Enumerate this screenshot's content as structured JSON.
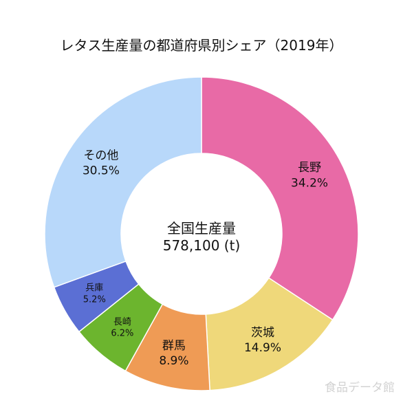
{
  "chart_data": {
    "type": "pie",
    "title": "レタス生産量の都道府県別シェア（2019年）",
    "center_label": "全国生産量",
    "center_value": "578,100 (t)",
    "slices": [
      {
        "label": "長野",
        "value": 34.2,
        "value_label": "34.2%",
        "color": "#e86aa6"
      },
      {
        "label": "茨城",
        "value": 14.9,
        "value_label": "14.9%",
        "color": "#efd87a"
      },
      {
        "label": "群馬",
        "value": 8.9,
        "value_label": "8.9%",
        "color": "#ef9b55"
      },
      {
        "label": "長崎",
        "value": 6.2,
        "value_label": "6.2%",
        "color": "#6cb52e"
      },
      {
        "label": "兵庫",
        "value": 5.2,
        "value_label": "5.2%",
        "color": "#5b6fd4"
      },
      {
        "label": "その他",
        "value": 30.5,
        "value_label": "30.5%",
        "color": "#b8d8fa"
      }
    ]
  },
  "watermark": "食品データ館"
}
